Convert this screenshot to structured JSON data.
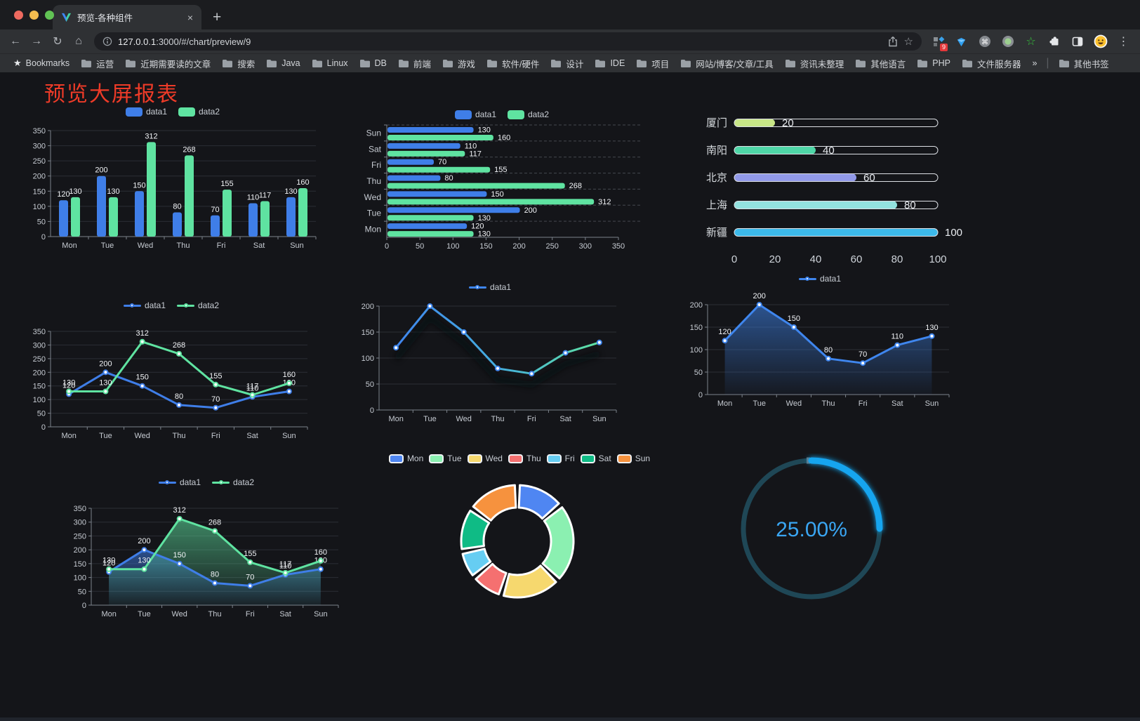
{
  "browser": {
    "tab": {
      "title": "预览-各种组件",
      "close_label": "×",
      "new_tab_label": "+"
    },
    "address": {
      "url_host": "127.0.0.1",
      "url_path": ":3000/#/chart/preview/9"
    },
    "extensions_badge": "9",
    "bookmarks_bar": {
      "bookmarks_label": "Bookmarks",
      "folders": [
        "运营",
        "近期需要读的文章",
        "搜索",
        "Java",
        "Linux",
        "DB",
        "前端",
        "游戏",
        "软件/硬件",
        "设计",
        "IDE",
        "项目",
        "网站/博客/文章/工具",
        "资讯未整理",
        "其他语言",
        "PHP",
        "文件服务器"
      ],
      "overflow": "»",
      "other_bookmarks": "其他书签"
    }
  },
  "page": {
    "title": "预览大屏报表",
    "title_color": "#ee3b28"
  },
  "chart_data": [
    {
      "type": "bar",
      "categories": [
        "Mon",
        "Tue",
        "Wed",
        "Thu",
        "Fri",
        "Sat",
        "Sun"
      ],
      "series": [
        {
          "name": "data1",
          "color": "#3f7ee8",
          "values": [
            120,
            200,
            150,
            80,
            70,
            110,
            130
          ]
        },
        {
          "name": "data2",
          "color": "#5fe3a1",
          "values": [
            130,
            130,
            312,
            268,
            155,
            117,
            160
          ]
        }
      ],
      "ylim": [
        0,
        350
      ],
      "ystep": 50,
      "labels": true,
      "legend_position": "top"
    },
    {
      "type": "hbar",
      "categories": [
        "Mon",
        "Tue",
        "Wed",
        "Thu",
        "Fri",
        "Sat",
        "Sun"
      ],
      "series": [
        {
          "name": "data1",
          "color": "#3f7ee8",
          "values": [
            120,
            200,
            150,
            80,
            70,
            110,
            130
          ]
        },
        {
          "name": "data2",
          "color": "#5fe3a1",
          "values": [
            130,
            130,
            312,
            268,
            155,
            117,
            160
          ]
        }
      ],
      "xlim": [
        0,
        350
      ],
      "xstep": 50,
      "labels": true,
      "legend_position": "top"
    },
    {
      "type": "progress",
      "max": 100,
      "axis_ticks": [
        0,
        20,
        40,
        60,
        80,
        100
      ],
      "rows": [
        {
          "label": "厦门",
          "value": 20,
          "color": "#c8e687"
        },
        {
          "label": "南阳",
          "value": 40,
          "color": "#4fd6a7"
        },
        {
          "label": "北京",
          "value": 60,
          "color": "#9199e8"
        },
        {
          "label": "上海",
          "value": 80,
          "color": "#93e2df"
        },
        {
          "label": "新疆",
          "value": 100,
          "color": "#3cb9ea"
        }
      ]
    },
    {
      "type": "line",
      "categories": [
        "Mon",
        "Tue",
        "Wed",
        "Thu",
        "Fri",
        "Sat",
        "Sun"
      ],
      "series": [
        {
          "name": "data1",
          "color": "#3f7ee8",
          "values": [
            120,
            200,
            150,
            80,
            70,
            110,
            130
          ]
        },
        {
          "name": "data2",
          "color": "#5fe3a1",
          "values": [
            130,
            130,
            312,
            268,
            155,
            117,
            160
          ]
        }
      ],
      "ylim": [
        0,
        350
      ],
      "ystep": 50,
      "labels": true,
      "legend_position": "top"
    },
    {
      "type": "line",
      "categories": [
        "Mon",
        "Tue",
        "Wed",
        "Thu",
        "Fri",
        "Sat",
        "Sun"
      ],
      "series": [
        {
          "name": "data1",
          "color": "#3f86ee",
          "gradient": [
            "#3f86ee",
            "#45aede",
            "#5fe3a1"
          ],
          "values": [
            120,
            200,
            150,
            80,
            70,
            110,
            130
          ]
        }
      ],
      "ylim": [
        0,
        200
      ],
      "ystep": 50,
      "labels": false,
      "shadow": true,
      "legend_position": "top"
    },
    {
      "type": "area",
      "categories": [
        "Mon",
        "Tue",
        "Wed",
        "Thu",
        "Fri",
        "Sat",
        "Sun"
      ],
      "series": [
        {
          "name": "data1",
          "color": "#3f86ee",
          "values": [
            120,
            200,
            150,
            80,
            70,
            110,
            130
          ]
        }
      ],
      "ylim": [
        0,
        200
      ],
      "ystep": 50,
      "labels": true,
      "legend_position": "top"
    },
    {
      "type": "area",
      "categories": [
        "Mon",
        "Tue",
        "Wed",
        "Thu",
        "Fri",
        "Sat",
        "Sun"
      ],
      "series": [
        {
          "name": "data1",
          "color": "#3f7ee8",
          "values": [
            120,
            200,
            150,
            80,
            70,
            110,
            130
          ]
        },
        {
          "name": "data2",
          "color": "#5fe3a1",
          "values": [
            130,
            130,
            312,
            268,
            155,
            117,
            160
          ]
        }
      ],
      "ylim": [
        0,
        350
      ],
      "ystep": 50,
      "labels": true,
      "legend_position": "top"
    },
    {
      "type": "pie",
      "categories": [
        "Mon",
        "Tue",
        "Wed",
        "Thu",
        "Fri",
        "Sat",
        "Sun"
      ],
      "values": [
        120,
        200,
        150,
        80,
        70,
        110,
        130
      ],
      "colors": [
        "#4f86f2",
        "#8bf0b1",
        "#f6d86e",
        "#f57070",
        "#66cdf2",
        "#0fbb85",
        "#f6923e"
      ],
      "inner_radius_ratio": 0.6,
      "legend_position": "top"
    },
    {
      "type": "gauge",
      "value": 25,
      "label": "25.00%",
      "track_color": "#1f4756",
      "progress_color": "#14a5ef",
      "text_color": "#3aa6f3"
    }
  ]
}
